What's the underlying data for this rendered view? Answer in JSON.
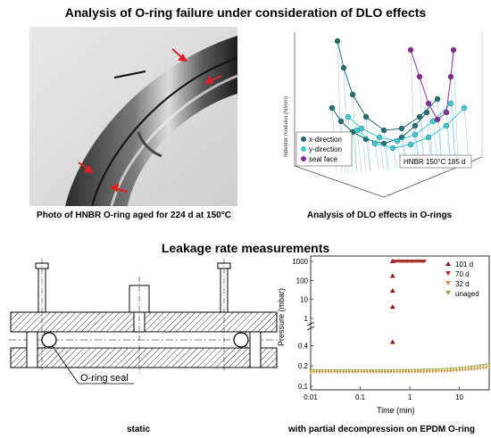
{
  "titles": {
    "top": "Analysis of O-ring failure under consideration of DLO effects",
    "middle": "Leakage rate measurements"
  },
  "captions": {
    "photo": "Photo of HNBR O-ring aged for 224 d at 150°C",
    "dlo": "Analysis of DLO effects in O-rings",
    "static": "static",
    "decompression": "with partial decompression on EPDM O-ring"
  },
  "drawing": {
    "oring_label": "O-ring seal"
  },
  "colors": {
    "x_direction": "#1f6f73",
    "y_direction": "#3cc9d6",
    "seal_face": "#8a2a9a",
    "d101": "#8b1a1a",
    "d70": "#a83232",
    "d32": "#d98c3a",
    "unaged": "#9aa83a",
    "arrow": "#e02020"
  },
  "chart_data": [
    {
      "type": "scatter",
      "subtype": "3d",
      "title": "",
      "zlabel": "Indenter modulus (N/mm)",
      "legend": [
        "x-direction",
        "y-direction",
        "seal face"
      ],
      "annotation": "HNBR 150°C 185 d"
    },
    {
      "type": "scatter",
      "title": "",
      "xlabel": "Time (min)",
      "ylabel": "Pressure (mbar)",
      "x_scale": "log",
      "y_scale": "broken-log",
      "xlim": [
        0.01,
        40
      ],
      "x_ticks": [
        "0.01",
        "0.1",
        "1",
        "10"
      ],
      "y_ticks": [
        "0.1",
        "0.2",
        "0.4",
        "1",
        "10",
        "100",
        "1000"
      ],
      "legend_position": "top-right",
      "series": [
        {
          "name": "101 d",
          "x": [
            0.45,
            0.45,
            0.45,
            0.45,
            0.45
          ],
          "y": [
            0.45,
            4,
            28,
            170,
            1000
          ]
        },
        {
          "name": "70 d",
          "x": [
            0.45,
            2.0
          ],
          "y": [
            1000,
            1000
          ]
        },
        {
          "name": "32 d",
          "x": [
            0.01,
            40
          ],
          "y": [
            0.16,
            0.19
          ]
        },
        {
          "name": "unaged",
          "x": [
            0.01,
            40
          ],
          "y": [
            0.17,
            0.21
          ]
        }
      ]
    }
  ]
}
